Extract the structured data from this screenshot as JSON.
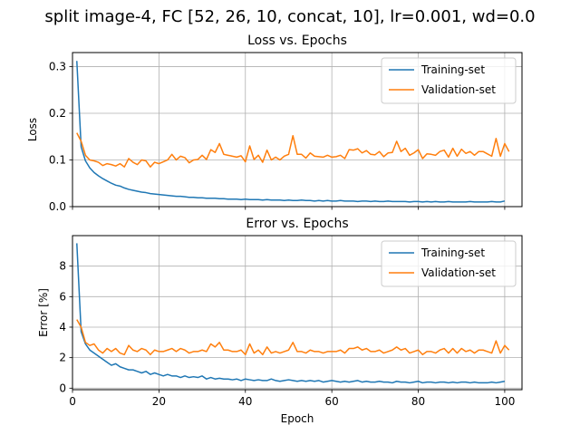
{
  "suptitle": "split image-4, FC [52, 26, 10, concat, 10], lr=0.001, wd=0.0",
  "chart_data": [
    {
      "type": "line",
      "title": "Loss vs. Epochs",
      "xlabel": "",
      "ylabel": "Loss",
      "xlim": [
        0,
        104
      ],
      "ylim": [
        0,
        0.33
      ],
      "xticks": [
        0,
        20,
        40,
        60,
        80,
        100
      ],
      "yticks": [
        0.0,
        0.1,
        0.2,
        0.3
      ],
      "ytick_labels": [
        "0.0",
        "0.1",
        "0.2",
        "0.3"
      ],
      "show_xtick_labels": false,
      "grid": true,
      "legend_position": "top-right",
      "x_start": 1,
      "series": [
        {
          "name": "Training-set",
          "color": "#1f77b4",
          "values": [
            0.312,
            0.128,
            0.098,
            0.083,
            0.073,
            0.066,
            0.06,
            0.055,
            0.05,
            0.046,
            0.044,
            0.04,
            0.037,
            0.035,
            0.033,
            0.031,
            0.03,
            0.028,
            0.027,
            0.026,
            0.025,
            0.024,
            0.023,
            0.022,
            0.022,
            0.021,
            0.02,
            0.02,
            0.019,
            0.019,
            0.018,
            0.018,
            0.018,
            0.017,
            0.017,
            0.016,
            0.016,
            0.016,
            0.015,
            0.016,
            0.015,
            0.015,
            0.015,
            0.014,
            0.015,
            0.014,
            0.014,
            0.014,
            0.013,
            0.014,
            0.013,
            0.013,
            0.014,
            0.013,
            0.013,
            0.012,
            0.013,
            0.012,
            0.013,
            0.012,
            0.012,
            0.013,
            0.012,
            0.012,
            0.012,
            0.011,
            0.012,
            0.012,
            0.011,
            0.012,
            0.011,
            0.011,
            0.012,
            0.011,
            0.011,
            0.011,
            0.011,
            0.01,
            0.011,
            0.011,
            0.01,
            0.011,
            0.01,
            0.011,
            0.01,
            0.01,
            0.011,
            0.01,
            0.01,
            0.01,
            0.01,
            0.011,
            0.01,
            0.01,
            0.01,
            0.01,
            0.011,
            0.01,
            0.01,
            0.012
          ]
        },
        {
          "name": "Validation-set",
          "color": "#ff7f0e",
          "values": [
            0.158,
            0.14,
            0.11,
            0.1,
            0.098,
            0.095,
            0.088,
            0.092,
            0.09,
            0.087,
            0.092,
            0.085,
            0.103,
            0.095,
            0.09,
            0.1,
            0.098,
            0.085,
            0.095,
            0.092,
            0.096,
            0.1,
            0.112,
            0.1,
            0.108,
            0.105,
            0.094,
            0.1,
            0.101,
            0.11,
            0.101,
            0.122,
            0.116,
            0.135,
            0.112,
            0.11,
            0.108,
            0.106,
            0.109,
            0.096,
            0.13,
            0.101,
            0.11,
            0.095,
            0.121,
            0.1,
            0.106,
            0.1,
            0.108,
            0.112,
            0.152,
            0.112,
            0.112,
            0.104,
            0.115,
            0.108,
            0.107,
            0.106,
            0.11,
            0.106,
            0.107,
            0.11,
            0.103,
            0.122,
            0.121,
            0.124,
            0.115,
            0.12,
            0.112,
            0.111,
            0.118,
            0.107,
            0.115,
            0.116,
            0.14,
            0.118,
            0.125,
            0.11,
            0.115,
            0.122,
            0.103,
            0.113,
            0.112,
            0.11,
            0.118,
            0.121,
            0.106,
            0.125,
            0.108,
            0.123,
            0.114,
            0.118,
            0.11,
            0.118,
            0.118,
            0.113,
            0.108,
            0.146,
            0.108,
            0.135,
            0.118
          ]
        }
      ]
    },
    {
      "type": "line",
      "title": "Error vs. Epochs",
      "xlabel": "Epoch",
      "ylabel": "Error [%]",
      "xlim": [
        0,
        104
      ],
      "ylim": [
        -0.1,
        10.0
      ],
      "xticks": [
        0,
        20,
        40,
        60,
        80,
        100
      ],
      "yticks": [
        0,
        2,
        4,
        6,
        8
      ],
      "ytick_labels": [
        "0",
        "2",
        "4",
        "6",
        "8"
      ],
      "show_xtick_labels": true,
      "grid": true,
      "legend_position": "top-right",
      "x_start": 1,
      "series": [
        {
          "name": "Training-set",
          "color": "#1f77b4",
          "values": [
            9.5,
            3.7,
            2.9,
            2.5,
            2.3,
            2.1,
            1.9,
            1.7,
            1.5,
            1.6,
            1.4,
            1.3,
            1.2,
            1.2,
            1.1,
            1.0,
            1.1,
            0.9,
            1.0,
            0.9,
            0.8,
            0.9,
            0.8,
            0.8,
            0.7,
            0.8,
            0.7,
            0.75,
            0.7,
            0.8,
            0.6,
            0.7,
            0.6,
            0.65,
            0.6,
            0.6,
            0.55,
            0.6,
            0.5,
            0.6,
            0.55,
            0.5,
            0.55,
            0.5,
            0.5,
            0.6,
            0.5,
            0.45,
            0.5,
            0.55,
            0.5,
            0.45,
            0.5,
            0.45,
            0.5,
            0.45,
            0.5,
            0.4,
            0.45,
            0.5,
            0.45,
            0.4,
            0.45,
            0.4,
            0.45,
            0.5,
            0.4,
            0.45,
            0.4,
            0.4,
            0.45,
            0.4,
            0.4,
            0.35,
            0.45,
            0.4,
            0.4,
            0.35,
            0.4,
            0.45,
            0.35,
            0.4,
            0.4,
            0.35,
            0.4,
            0.4,
            0.35,
            0.4,
            0.35,
            0.4,
            0.4,
            0.35,
            0.4,
            0.35,
            0.35,
            0.35,
            0.4,
            0.35,
            0.4,
            0.45
          ]
        },
        {
          "name": "Validation-set",
          "color": "#ff7f0e",
          "values": [
            4.5,
            4.0,
            3.0,
            2.8,
            2.9,
            2.5,
            2.3,
            2.6,
            2.4,
            2.6,
            2.3,
            2.2,
            2.8,
            2.5,
            2.4,
            2.6,
            2.5,
            2.2,
            2.5,
            2.4,
            2.4,
            2.5,
            2.6,
            2.4,
            2.6,
            2.5,
            2.3,
            2.4,
            2.4,
            2.5,
            2.4,
            2.9,
            2.7,
            3.0,
            2.5,
            2.5,
            2.4,
            2.4,
            2.5,
            2.2,
            2.9,
            2.3,
            2.5,
            2.2,
            2.7,
            2.3,
            2.4,
            2.3,
            2.4,
            2.5,
            3.0,
            2.4,
            2.4,
            2.3,
            2.5,
            2.4,
            2.4,
            2.3,
            2.4,
            2.4,
            2.4,
            2.5,
            2.3,
            2.6,
            2.6,
            2.7,
            2.5,
            2.6,
            2.4,
            2.4,
            2.5,
            2.3,
            2.4,
            2.5,
            2.7,
            2.5,
            2.6,
            2.3,
            2.4,
            2.5,
            2.2,
            2.4,
            2.4,
            2.3,
            2.5,
            2.6,
            2.3,
            2.6,
            2.3,
            2.6,
            2.4,
            2.5,
            2.3,
            2.5,
            2.5,
            2.4,
            2.3,
            3.1,
            2.3,
            2.8,
            2.5
          ]
        }
      ]
    }
  ]
}
